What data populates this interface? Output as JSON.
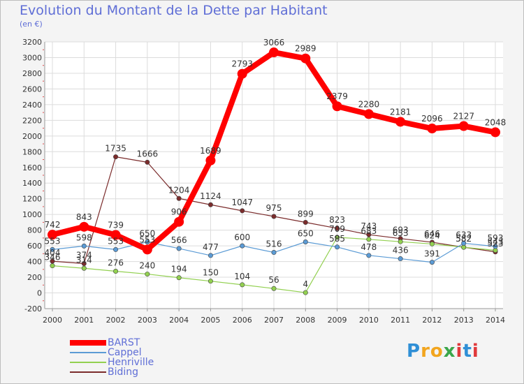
{
  "title": "Evolution du Montant de la Dette par Habitant",
  "unit_label": "(en €)",
  "logo_text": "Proxiti",
  "chart_data": {
    "type": "line",
    "title": "Evolution du Montant de la Dette par Habitant",
    "ylabel": "(en €)",
    "xlabel": "",
    "ylim": [
      -200,
      3200
    ],
    "yticks": [
      -200,
      0,
      200,
      400,
      600,
      800,
      1000,
      1200,
      1400,
      1600,
      1800,
      2000,
      2200,
      2400,
      2600,
      2800,
      3000,
      3200
    ],
    "categories": [
      "2000",
      "2001",
      "2002",
      "2003",
      "2004",
      "2005",
      "2006",
      "2007",
      "2008",
      "2009",
      "2010",
      "2011",
      "2012",
      "2013",
      "2014"
    ],
    "grid": true,
    "legend_position": "bottom-left",
    "series": [
      {
        "name": "BARST",
        "color": "#ff0000",
        "values": [
          742,
          843,
          739,
          553,
          906,
          1689,
          2793,
          3066,
          2989,
          2379,
          2280,
          2181,
          2096,
          2127,
          2048
        ]
      },
      {
        "name": "Cappel",
        "color": "#5b9bd5",
        "values": [
          553,
          598,
          553,
          650,
          566,
          477,
          600,
          516,
          650,
          585,
          478,
          436,
          391,
          633,
          593
        ]
      },
      {
        "name": "Henriville",
        "color": "#92d050",
        "values": [
          346,
          314,
          276,
          240,
          194,
          150,
          104,
          56,
          4,
          709,
          683,
          653,
          624,
          582,
          543
        ]
      },
      {
        "name": "Biding",
        "color": "#7b2c2c",
        "values": [
          404,
          374,
          1735,
          1666,
          1204,
          1124,
          1047,
          975,
          899,
          823,
          743,
          693,
          646,
          582,
          523
        ]
      }
    ]
  }
}
